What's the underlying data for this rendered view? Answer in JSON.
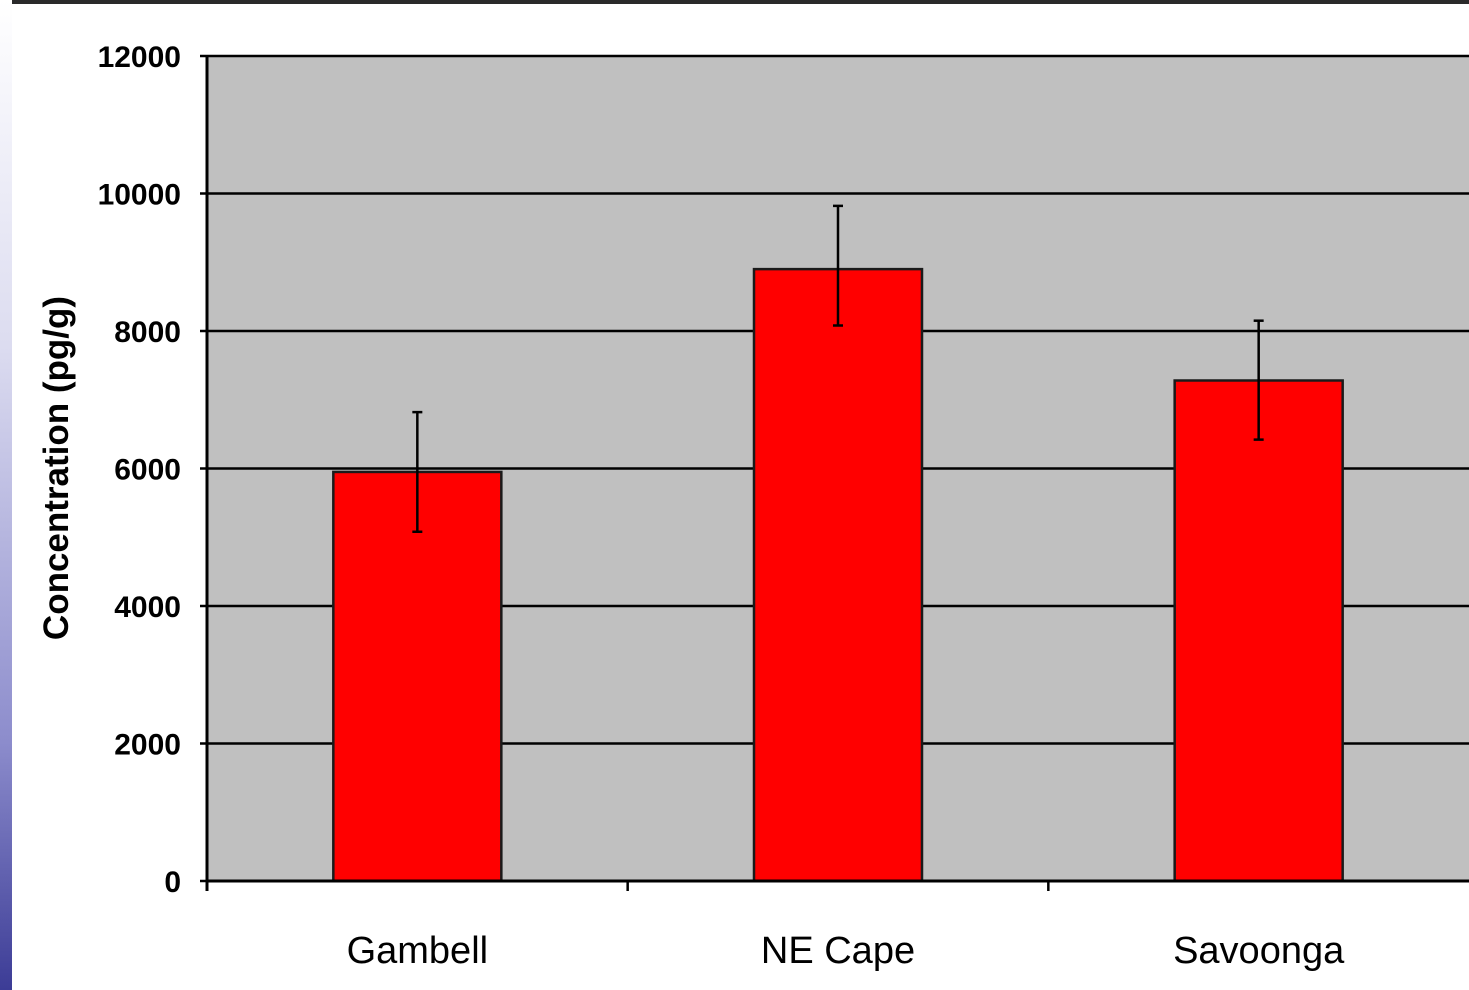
{
  "chart_data": {
    "type": "bar",
    "title": "",
    "xlabel": "",
    "ylabel": "Concentration (pg/g)",
    "categories": [
      "Gambell",
      "NE Cape",
      "Savoonga"
    ],
    "values": [
      5950,
      8900,
      7280
    ],
    "error_upper": [
      6820,
      9820,
      8150
    ],
    "error_lower": [
      5080,
      8080,
      6420
    ],
    "ylim": [
      0,
      12000
    ],
    "yticks": [
      "0",
      "2000",
      "4000",
      "6000",
      "8000",
      "10000",
      "12000"
    ],
    "grid": true,
    "legend": "none",
    "colors": {
      "bar": "#ff0000",
      "plot_background": "#c0c0c0",
      "gridline": "#000000",
      "error_bar": "#000000"
    }
  }
}
